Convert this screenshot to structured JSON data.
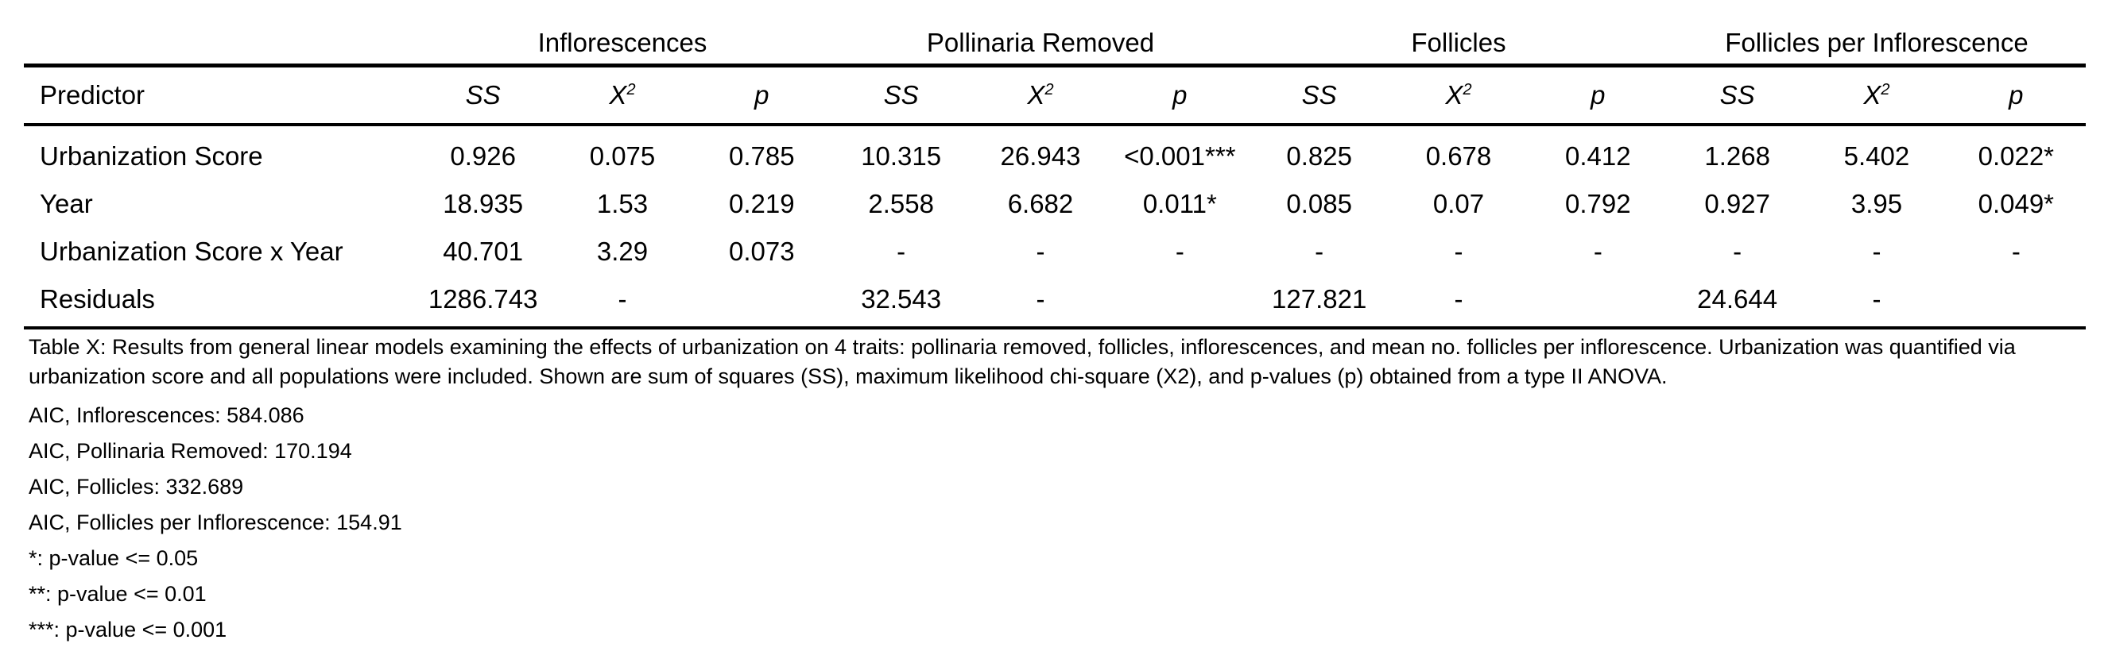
{
  "table": {
    "groups": [
      "Inflorescences",
      "Pollinaria Removed",
      "Follicles",
      "Follicles per Inflorescence"
    ],
    "predictor_header": "Predictor",
    "stat_headers": {
      "ss": "SS",
      "chi_base": "X",
      "chi_sup": "2",
      "p": "p"
    },
    "rows": [
      {
        "predictor": "Urbanization Score",
        "cells": [
          "0.926",
          "0.075",
          "0.785",
          "10.315",
          "26.943",
          "<0.001***",
          "0.825",
          "0.678",
          "0.412",
          "1.268",
          "5.402",
          "0.022*"
        ]
      },
      {
        "predictor": "Year",
        "cells": [
          "18.935",
          "1.53",
          "0.219",
          "2.558",
          "6.682",
          "0.011*",
          "0.085",
          "0.07",
          "0.792",
          "0.927",
          "3.95",
          "0.049*"
        ]
      },
      {
        "predictor": "Urbanization Score x Year",
        "cells": [
          "40.701",
          "3.29",
          "0.073",
          "-",
          "-",
          "-",
          "-",
          "-",
          "-",
          "-",
          "-",
          "-"
        ]
      },
      {
        "predictor": "Residuals",
        "cells": [
          "1286.743",
          "-",
          "",
          "32.543",
          "-",
          "",
          "127.821",
          "-",
          "",
          "24.644",
          "-",
          ""
        ]
      }
    ]
  },
  "notes": {
    "caption": "Table X: Results from general linear models examining the effects of urbanization on 4 traits: pollinaria removed, follicles, inflorescences, and mean no. follicles per inflorescence. Urbanization was quantified via urbanization score and all populations were included. Shown are sum of squares (SS), maximum likelihood chi-square (X2), and p-values (p) obtained from a type II ANOVA.",
    "aic_inflorescences": "AIC, Inflorescences: 584.086",
    "aic_pollinaria": "AIC, Pollinaria Removed: 170.194",
    "aic_follicles": "AIC, Follicles: 332.689",
    "aic_follicles_per_inflorescence": "AIC, Follicles per Inflorescence: 154.91",
    "sig_1": "*: p-value <= 0.05",
    "sig_2": "**: p-value <= 0.01",
    "sig_3": "***: p-value <= 0.001"
  }
}
